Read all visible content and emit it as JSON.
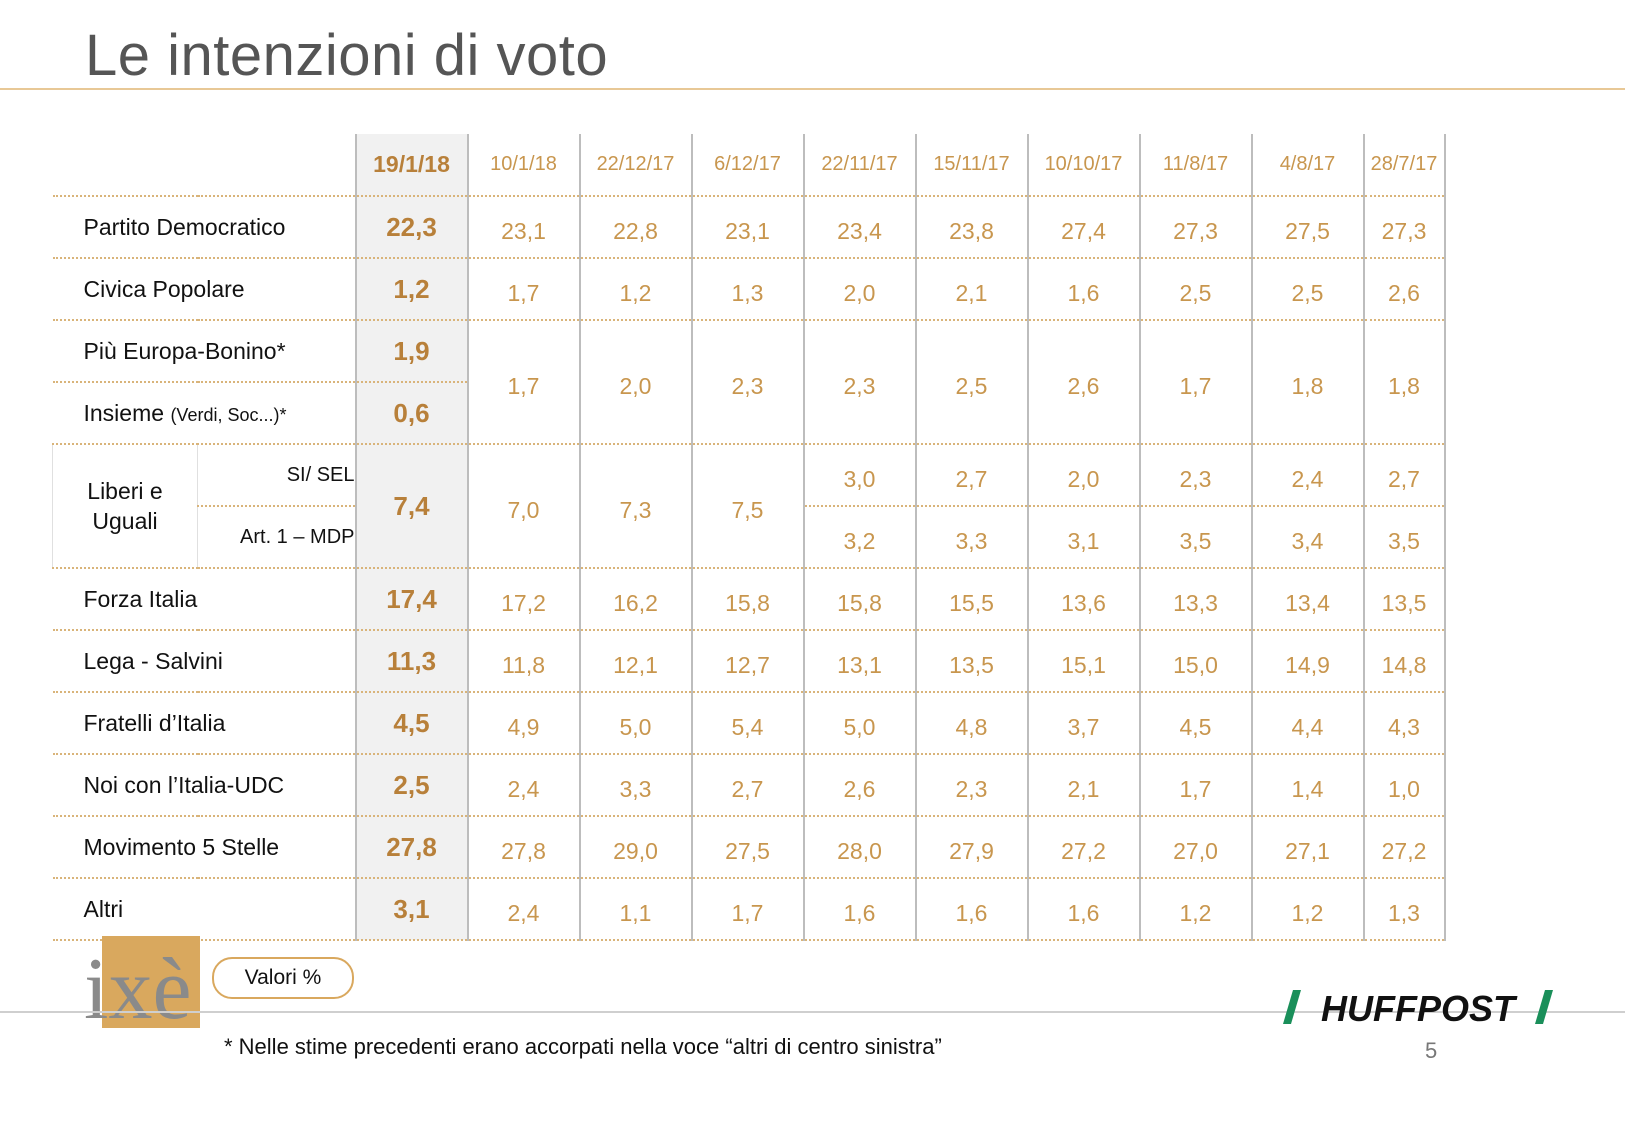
{
  "page": {
    "title": "Le intenzioni di voto",
    "valori_label": "Valori %",
    "footnote": "* Nelle stime precedenti erano accorpati nella voce “altri di centro sinistra”",
    "page_number": "5",
    "brand_right": "HUFFPOST",
    "brand_left": "ixè",
    "accent_color": "#c8964e",
    "highlight_color": "#f1f1f1"
  },
  "table": {
    "dates": [
      "19/1/18",
      "10/1/18",
      "22/12/17",
      "6/12/17",
      "22/11/17",
      "15/11/17",
      "10/10/17",
      "11/8/17",
      "4/8/17",
      "28/7/17"
    ],
    "rows": {
      "pd": {
        "label": "Partito Democratico",
        "values": [
          "22,3",
          "23,1",
          "22,8",
          "23,1",
          "23,4",
          "23,8",
          "27,4",
          "27,3",
          "27,5",
          "27,3"
        ]
      },
      "cp": {
        "label": "Civica Popolare",
        "values": [
          "1,2",
          "1,7",
          "1,2",
          "1,3",
          "2,0",
          "2,1",
          "1,6",
          "2,5",
          "2,5",
          "2,6"
        ]
      },
      "peb": {
        "label": "Più Europa-Bonino*",
        "current": "1,9"
      },
      "ins": {
        "label": "Insieme",
        "label_small": "(Verdi, Soc...)*",
        "current": "0,6"
      },
      "peb_ins_merged": [
        "1,7",
        "2,0",
        "2,3",
        "2,3",
        "2,5",
        "2,6",
        "1,7",
        "1,8",
        "1,8"
      ],
      "leu": {
        "group_label_1": "Liberi e",
        "group_label_2": "Uguali",
        "sub1": "SI/ SEL",
        "sub2": "Art. 1 – MDP",
        "current": "7,4",
        "merged": [
          "7,0",
          "7,3",
          "7,5"
        ],
        "sel": [
          "3,0",
          "2,7",
          "2,0",
          "2,3",
          "2,4",
          "2,7"
        ],
        "mdp": [
          "3,2",
          "3,3",
          "3,1",
          "3,5",
          "3,4",
          "3,5"
        ]
      },
      "fi": {
        "label": "Forza Italia",
        "values": [
          "17,4",
          "17,2",
          "16,2",
          "15,8",
          "15,8",
          "15,5",
          "13,6",
          "13,3",
          "13,4",
          "13,5"
        ]
      },
      "lega": {
        "label": "Lega - Salvini",
        "values": [
          "11,3",
          "11,8",
          "12,1",
          "12,7",
          "13,1",
          "13,5",
          "15,1",
          "15,0",
          "14,9",
          "14,8"
        ]
      },
      "fdi": {
        "label": "Fratelli d’Italia",
        "values": [
          "4,5",
          "4,9",
          "5,0",
          "5,4",
          "5,0",
          "4,8",
          "3,7",
          "4,5",
          "4,4",
          "4,3"
        ]
      },
      "noi": {
        "label": "Noi con l’Italia-UDC",
        "values": [
          "2,5",
          "2,4",
          "3,3",
          "2,7",
          "2,6",
          "2,3",
          "2,1",
          "1,7",
          "1,4",
          "1,0"
        ]
      },
      "m5s": {
        "label": "Movimento 5 Stelle",
        "values": [
          "27,8",
          "27,8",
          "29,0",
          "27,5",
          "28,0",
          "27,9",
          "27,2",
          "27,0",
          "27,1",
          "27,2"
        ]
      },
      "altri": {
        "label": "Altri",
        "values": [
          "3,1",
          "2,4",
          "1,1",
          "1,7",
          "1,6",
          "1,6",
          "1,6",
          "1,2",
          "1,2",
          "1,3"
        ]
      }
    }
  }
}
